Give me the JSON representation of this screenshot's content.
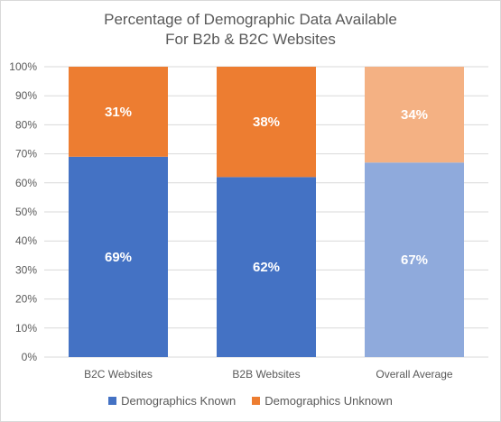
{
  "chart_data": {
    "type": "bar",
    "stacked": true,
    "title_lines": [
      "Percentage of Demographic Data Available",
      "For B2b & B2C Websites"
    ],
    "categories": [
      "B2C Websites",
      "B2B Websites",
      "Overall Average"
    ],
    "series": [
      {
        "name": "Demographics Known",
        "values": [
          69,
          62,
          67
        ],
        "labels": [
          "69%",
          "62%",
          "67%"
        ],
        "color": "#4472c4",
        "muted_color": "#8faadc"
      },
      {
        "name": "Demographics Unknown",
        "values": [
          31,
          38,
          34
        ],
        "labels": [
          "31%",
          "38%",
          "34%"
        ],
        "color": "#ed7d31",
        "muted_color": "#f4b183"
      }
    ],
    "muted_categories": [
      2
    ],
    "ylim": [
      0,
      100
    ],
    "yticks": [
      "0%",
      "10%",
      "20%",
      "30%",
      "40%",
      "50%",
      "60%",
      "70%",
      "80%",
      "90%",
      "100%"
    ],
    "grid": true,
    "legend_position": "bottom"
  }
}
